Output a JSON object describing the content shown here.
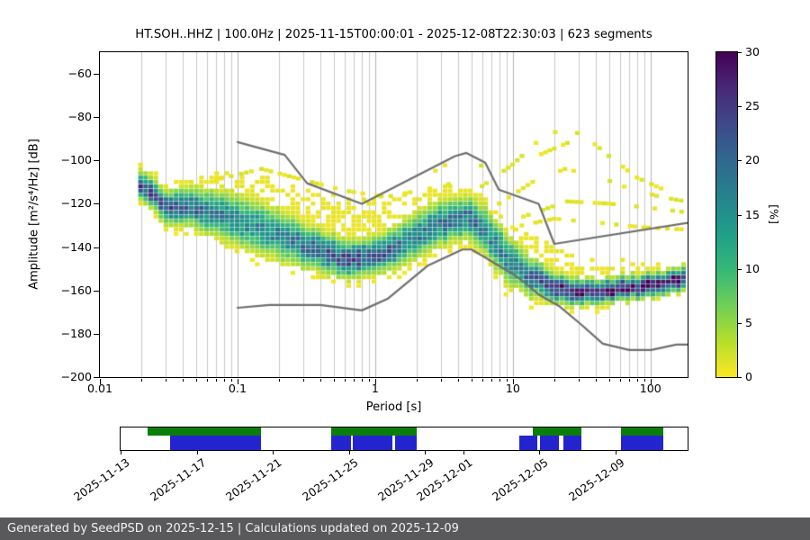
{
  "footer": {
    "text": "Generated by SeedPSD on 2025-12-15 | Calculations updated on 2025-12-09"
  },
  "chart_data": {
    "type": "heatmap",
    "title": "HT.SOH..HHZ | 100.0Hz | 2025-11-15T00:00:01 - 2025-12-08T22:30:03 | 623 segments",
    "xlabel": "Period [s]",
    "ylabel": "Amplitude [m²/s⁴/Hz] [dB]",
    "x_scale": "log",
    "xlim": [
      0.01,
      186
    ],
    "ylim": [
      -200,
      -50
    ],
    "grid": "vertical-log",
    "x_ticks": [
      {
        "v": 0.01,
        "label": "0.01"
      },
      {
        "v": 0.1,
        "label": "0.1"
      },
      {
        "v": 1,
        "label": "1"
      },
      {
        "v": 10,
        "label": "10"
      },
      {
        "v": 100,
        "label": "100"
      }
    ],
    "y_ticks": [
      {
        "v": -60,
        "label": "−60"
      },
      {
        "v": -80,
        "label": "−80"
      },
      {
        "v": -100,
        "label": "−100"
      },
      {
        "v": -120,
        "label": "−120"
      },
      {
        "v": -140,
        "label": "−140"
      },
      {
        "v": -160,
        "label": "−160"
      },
      {
        "v": -180,
        "label": "−180"
      },
      {
        "v": -200,
        "label": "−200"
      }
    ],
    "colorbar": {
      "label": "[%]",
      "range": [
        0,
        30
      ],
      "ticks": [
        0,
        5,
        10,
        15,
        20,
        25,
        30
      ],
      "colormap": "viridis_reversed",
      "viridis": [
        "#440154",
        "#482878",
        "#3e4989",
        "#31688e",
        "#26828e",
        "#1f9e89",
        "#35b779",
        "#6ece58",
        "#b5de2b",
        "#fde725"
      ]
    },
    "heatmap": {
      "period_range": [
        0.019,
        182
      ],
      "columns": 108,
      "db_bin": 2,
      "profile": [
        {
          "p": 0.019,
          "mode": -110,
          "peak": 24,
          "up": 10,
          "down": 8,
          "sigma": 3.5
        },
        {
          "p": 0.03,
          "mode": -121,
          "peak": 22,
          "up": 12,
          "down": 9,
          "sigma": 4
        },
        {
          "p": 0.05,
          "mode": -122,
          "peak": 20,
          "up": 16,
          "down": 12,
          "sigma": 5
        },
        {
          "p": 0.08,
          "mode": -125,
          "peak": 17,
          "up": 20,
          "down": 14,
          "sigma": 6
        },
        {
          "p": 0.13,
          "mode": -130,
          "peak": 16,
          "up": 24,
          "down": 14,
          "sigma": 6.5
        },
        {
          "p": 0.22,
          "mode": -136,
          "peak": 17,
          "up": 26,
          "down": 13,
          "sigma": 6
        },
        {
          "p": 0.4,
          "mode": -142,
          "peak": 20,
          "up": 27,
          "down": 12,
          "sigma": 5
        },
        {
          "p": 0.65,
          "mode": -146,
          "peak": 24,
          "up": 28,
          "down": 10,
          "sigma": 4.5
        },
        {
          "p": 1.0,
          "mode": -144,
          "peak": 22,
          "up": 26,
          "down": 10,
          "sigma": 4.5
        },
        {
          "p": 1.8,
          "mode": -137,
          "peak": 18,
          "up": 22,
          "down": 11,
          "sigma": 5.5
        },
        {
          "p": 3.0,
          "mode": -129,
          "peak": 18,
          "up": 18,
          "down": 13,
          "sigma": 5.5
        },
        {
          "p": 4.5,
          "mode": -126,
          "peak": 20,
          "up": 14,
          "down": 15,
          "sigma": 5
        },
        {
          "p": 6.5,
          "mode": -133,
          "peak": 17,
          "up": 14,
          "down": 16,
          "sigma": 6
        },
        {
          "p": 9.0,
          "mode": -145,
          "peak": 17,
          "up": 16,
          "down": 13,
          "sigma": 6
        },
        {
          "p": 13,
          "mode": -153,
          "peak": 19,
          "up": 20,
          "down": 10,
          "sigma": 5
        },
        {
          "p": 20,
          "mode": -159,
          "peak": 26,
          "up": 20,
          "down": 7,
          "sigma": 3.5
        },
        {
          "p": 35,
          "mode": -161,
          "peak": 30,
          "up": 16,
          "down": 6,
          "sigma": 3
        },
        {
          "p": 70,
          "mode": -159,
          "peak": 30,
          "up": 12,
          "down": 6,
          "sigma": 2.8
        },
        {
          "p": 120,
          "mode": -157,
          "peak": 30,
          "up": 10,
          "down": 6,
          "sigma": 2.8
        },
        {
          "p": 182,
          "mode": -154,
          "peak": 30,
          "up": 9,
          "down": 6,
          "sigma": 2.8
        }
      ],
      "event_curves": [
        {
          "points": [
            [
              6,
              -112
            ],
            [
              10,
              -102
            ],
            [
              16,
              -90
            ],
            [
              24,
              -85
            ],
            [
              34,
              -89
            ],
            [
              50,
              -98
            ],
            [
              80,
              -108
            ],
            [
              130,
              -114
            ]
          ],
          "density": 0.55
        },
        {
          "points": [
            [
              8,
              -120
            ],
            [
              14,
              -110
            ],
            [
              24,
              -104
            ],
            [
              40,
              -107
            ],
            [
              70,
              -113
            ],
            [
              120,
              -117
            ],
            [
              182,
              -119
            ]
          ],
          "density": 0.5
        },
        {
          "points": [
            [
              12,
              -126
            ],
            [
              25,
              -119
            ],
            [
              50,
              -120
            ],
            [
              100,
              -122
            ],
            [
              182,
              -124
            ]
          ],
          "density": 0.55
        },
        {
          "points": [
            [
              0.07,
              -109
            ],
            [
              0.15,
              -104
            ],
            [
              0.3,
              -109
            ],
            [
              0.6,
              -114
            ],
            [
              1.2,
              -117
            ],
            [
              2.5,
              -113
            ],
            [
              4,
              -110
            ]
          ],
          "density": 0.5
        },
        {
          "points": [
            [
              10,
              -131
            ],
            [
              20,
              -127
            ],
            [
              45,
              -129
            ],
            [
              90,
              -131
            ],
            [
              182,
              -132
            ]
          ],
          "density": 0.45
        },
        {
          "points": [
            [
              15,
              -98
            ],
            [
              25,
              -92
            ],
            [
              40,
              -97
            ],
            [
              60,
              -104
            ]
          ],
          "density": 0.4
        },
        {
          "points": [
            [
              2,
              -110
            ],
            [
              3.5,
              -101
            ],
            [
              5,
              -99
            ],
            [
              7,
              -106
            ]
          ],
          "density": 0.4
        }
      ]
    },
    "noise_models": {
      "color": "#6f6f6f",
      "high": [
        [
          0.1,
          -91.5
        ],
        [
          0.22,
          -97.4
        ],
        [
          0.32,
          -110.5
        ],
        [
          0.8,
          -120
        ],
        [
          3.8,
          -98
        ],
        [
          4.6,
          -96.5
        ],
        [
          6.3,
          -101
        ],
        [
          7.9,
          -113.5
        ],
        [
          15.4,
          -120
        ],
        [
          20,
          -138.5
        ],
        [
          354.8,
          -126
        ]
      ],
      "low": [
        [
          0.1,
          -168
        ],
        [
          0.17,
          -166.7
        ],
        [
          0.4,
          -166.7
        ],
        [
          0.8,
          -169.2
        ],
        [
          1.24,
          -163.7
        ],
        [
          2.4,
          -148.6
        ],
        [
          4.3,
          -141.1
        ],
        [
          5,
          -141.1
        ],
        [
          6,
          -144
        ],
        [
          10,
          -152.4
        ],
        [
          12,
          -156
        ],
        [
          15.6,
          -162.1
        ],
        [
          21.9,
          -167.4
        ],
        [
          31.6,
          -175.9
        ],
        [
          45,
          -184.6
        ],
        [
          70,
          -187.5
        ],
        [
          101,
          -187.5
        ],
        [
          154,
          -185
        ],
        [
          328,
          -185
        ]
      ]
    }
  },
  "timeline": {
    "domain_days": [
      0,
      29.8
    ],
    "colors": {
      "green": "#0b7d0b",
      "blue": "#2424cf"
    },
    "green_segments": [
      [
        1.4,
        7.4
      ],
      [
        11.05,
        15.55
      ],
      [
        21.65,
        24.2
      ],
      [
        26.3,
        28.5
      ]
    ],
    "blue_segments": [
      [
        2.6,
        7.4
      ],
      [
        11.05,
        12.1
      ],
      [
        12.2,
        14.3
      ],
      [
        14.45,
        15.55
      ],
      [
        20.95,
        21.9
      ],
      [
        22.05,
        23.05
      ],
      [
        23.25,
        24.2
      ],
      [
        26.3,
        28.5
      ]
    ],
    "ticks": [
      {
        "day": 0,
        "label": "2025-11-13"
      },
      {
        "day": 4,
        "label": "2025-11-17"
      },
      {
        "day": 8,
        "label": "2025-11-21"
      },
      {
        "day": 12,
        "label": "2025-11-25"
      },
      {
        "day": 16,
        "label": "2025-11-29"
      },
      {
        "day": 18,
        "label": "2025-12-01"
      },
      {
        "day": 22,
        "label": "2025-12-05"
      },
      {
        "day": 26,
        "label": "2025-12-09"
      }
    ]
  }
}
